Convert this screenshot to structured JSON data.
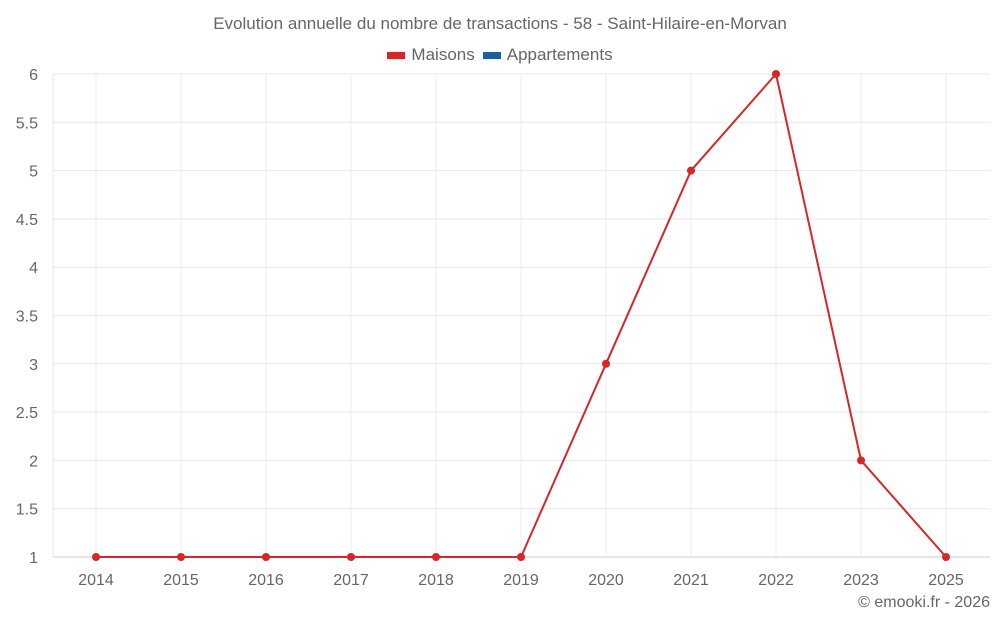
{
  "title": "Evolution annuelle du nombre de transactions - 58 - Saint-Hilaire-en-Morvan",
  "legend": [
    {
      "label": "Maisons",
      "color": "#d62728"
    },
    {
      "label": "Appartements",
      "color": "#1f5f99"
    }
  ],
  "credit": "© emooki.fr - 2026",
  "chart_data": {
    "type": "line",
    "title": "Evolution annuelle du nombre de transactions - 58 - Saint-Hilaire-en-Morvan",
    "xlabel": "",
    "ylabel": "",
    "categories": [
      "2014",
      "2015",
      "2016",
      "2017",
      "2018",
      "2019",
      "2020",
      "2021",
      "2022",
      "2023",
      "2025"
    ],
    "series": [
      {
        "name": "Maisons",
        "color": "#d62728",
        "values": [
          1,
          1,
          1,
          1,
          1,
          1,
          3,
          5,
          6,
          2,
          1
        ]
      },
      {
        "name": "Appartements",
        "color": "#1f5f99",
        "values": []
      }
    ],
    "yticks": [
      "1",
      "1.5",
      "2",
      "2.5",
      "3",
      "3.5",
      "4",
      "4.5",
      "5",
      "5.5",
      "6"
    ],
    "ylim": [
      1,
      6
    ],
    "grid": true,
    "legend_position": "top"
  }
}
